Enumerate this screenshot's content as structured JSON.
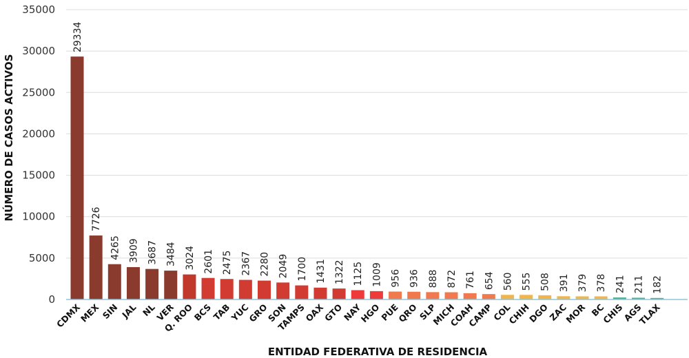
{
  "chart_data": {
    "type": "bar",
    "title": "",
    "xlabel": "ENTIDAD FEDERATIVA DE RESIDENCIA",
    "ylabel": "NÚMERO DE CASOS ACTIVOS",
    "ylim": [
      0,
      35000
    ],
    "yticks": [
      0,
      5000,
      10000,
      15000,
      20000,
      25000,
      30000,
      35000
    ],
    "grid": true,
    "legend": "none",
    "categories": [
      "CDMX",
      "MEX",
      "SIN",
      "JAL",
      "NL",
      "VER",
      "Q. ROO",
      "BCS",
      "TAB",
      "YUC",
      "GRO",
      "SON",
      "TAMPS",
      "OAX",
      "GTO",
      "NAY",
      "HGO",
      "PUE",
      "QRO",
      "SLP",
      "MICH",
      "COAH",
      "CAMP",
      "COL",
      "CHIH",
      "DGO",
      "ZAC",
      "MOR",
      "BC",
      "CHIS",
      "AGS",
      "TLAX"
    ],
    "values": [
      29334,
      7726,
      4265,
      3909,
      3687,
      3484,
      3024,
      2601,
      2475,
      2367,
      2280,
      2049,
      1700,
      1431,
      1322,
      1125,
      1009,
      956,
      936,
      888,
      872,
      761,
      654,
      560,
      555,
      508,
      391,
      379,
      378,
      241,
      211,
      182
    ],
    "colors": [
      "#8b3a2e",
      "#8b3a2e",
      "#8b3a2e",
      "#8b3a2e",
      "#8b3a2e",
      "#8b3a2e",
      "#c0392b",
      "#d13b31",
      "#d13b31",
      "#d13b31",
      "#d13b31",
      "#d13b31",
      "#d13b31",
      "#d13b31",
      "#d13b31",
      "#ee3a3a",
      "#ee3a3a",
      "#f07a4e",
      "#f07a4e",
      "#f07a4e",
      "#f07a4e",
      "#f07a4e",
      "#f07a4e",
      "#f2b44c",
      "#f2b44c",
      "#f2b44c",
      "#f2b44c",
      "#f2b44c",
      "#f2b44c",
      "#4db38a",
      "#4db38a",
      "#4db38a"
    ]
  }
}
